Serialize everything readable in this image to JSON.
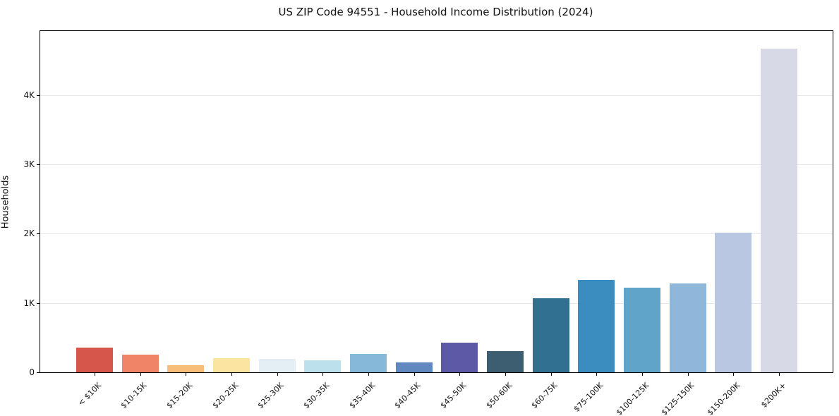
{
  "figure": {
    "background": "#ffffff",
    "title": "US ZIP Code 94551 - Household Income Distribution (2024)"
  },
  "chart_data": {
    "type": "bar",
    "title": "US ZIP Code 94551 - Household Income Distribution (2024)",
    "xlabel": "",
    "ylabel": "Households",
    "categories": [
      "< $10K",
      "$10-15K",
      "$15-20K",
      "$20-25K",
      "$25-30K",
      "$30-35K",
      "$35-40K",
      "$40-45K",
      "$45-50K",
      "$50-60K",
      "$60-75K",
      "$75-100K",
      "$100-125K",
      "$125-150K",
      "$150-200K",
      "$200K+"
    ],
    "values": [
      360,
      255,
      105,
      205,
      195,
      175,
      265,
      140,
      430,
      310,
      1065,
      1335,
      1225,
      1285,
      2015,
      4670
    ],
    "bar_colors": [
      "#d6564c",
      "#f08466",
      "#f8bd78",
      "#fbe3a1",
      "#e3eff4",
      "#bce0ec",
      "#86b8d9",
      "#6189c0",
      "#5c59a7",
      "#3c5e70",
      "#327092",
      "#3a8dbe",
      "#60a4ca",
      "#8eb7da",
      "#b9c7e2",
      "#d8d9e6"
    ],
    "ytick_values": [
      0,
      1000,
      2000,
      3000,
      4000
    ],
    "ytick_labels": [
      "0",
      "1K",
      "2K",
      "3K",
      "4K"
    ],
    "ylim": [
      0,
      4920
    ],
    "grid": "horizontal-only",
    "gridline_color": "#e7e7ee",
    "legend": "none",
    "xtick_rotation_deg": 45
  }
}
